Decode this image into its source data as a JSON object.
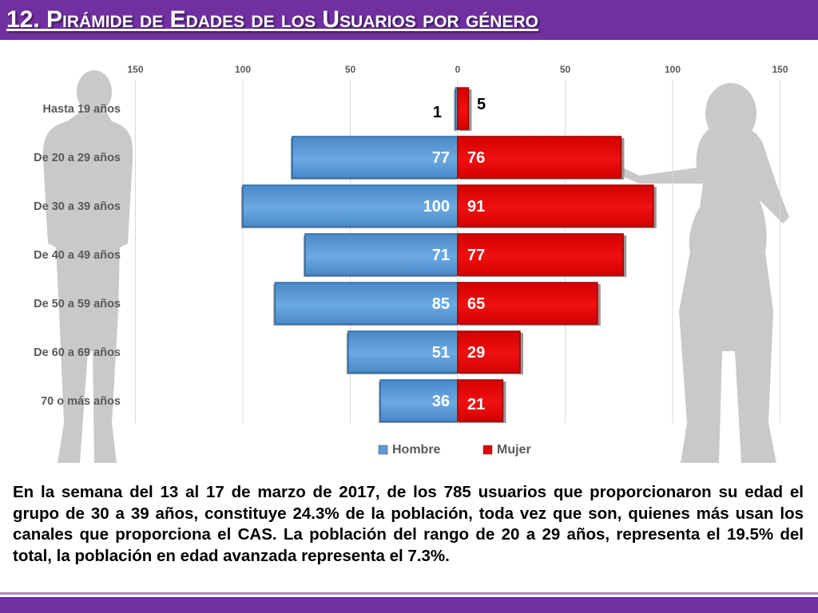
{
  "header": {
    "title": "12. Pirámide de Edades de los Usuarios por género"
  },
  "caption": "En la semana del 13 al 17 de marzo de 2017, de los 785 usuarios  que proporcionaron su edad el grupo de 30 a 39 años, constituye 24.3% de la población, toda vez que son, quienes más usan los canales que proporciona el CAS. La población del rango de 20 a 29 años, representa el 19.5% del total, la población en edad avanzada representa el 7.3%.",
  "colors": {
    "title_bar": "#7030a0",
    "hombre": "#5b9bd5",
    "mujer": "#e50000"
  },
  "chart_data": {
    "type": "bar",
    "orientation": "horizontal",
    "layout": "population-pyramid",
    "categories": [
      "Hasta 19 años",
      "De 20 a 29 años",
      "De 30 a 39 años",
      "De 40 a 49 años",
      "De 50 a 59 años",
      "De 60 a 69 años",
      "70 o más años"
    ],
    "series": [
      {
        "name": "Hombre",
        "values": [
          1,
          77,
          100,
          71,
          85,
          51,
          36
        ],
        "side": "left",
        "color": "#5b9bd5"
      },
      {
        "name": "Mujer",
        "values": [
          5,
          76,
          91,
          77,
          65,
          29,
          21
        ],
        "side": "right",
        "color": "#e50000"
      }
    ],
    "xlim": [
      -150,
      150
    ],
    "xticks": [
      -150,
      -100,
      -50,
      0,
      50,
      100,
      150
    ],
    "xtick_labels": [
      "150",
      "100",
      "50",
      "0",
      "50",
      "100",
      "150"
    ],
    "grid": "vertical",
    "legend_position": "bottom"
  }
}
